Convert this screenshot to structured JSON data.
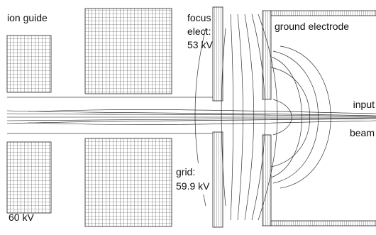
{
  "labels": {
    "ion_guide": "ion guide",
    "focus": [
      "focus",
      "elect:"
    ],
    "focus_voltage": "53 kV",
    "ground": "ground electrode",
    "input": [
      "input",
      "beam"
    ],
    "grid": "grid:",
    "grid_voltage": "59.9 kV",
    "guide_voltage": "60 kV"
  }
}
